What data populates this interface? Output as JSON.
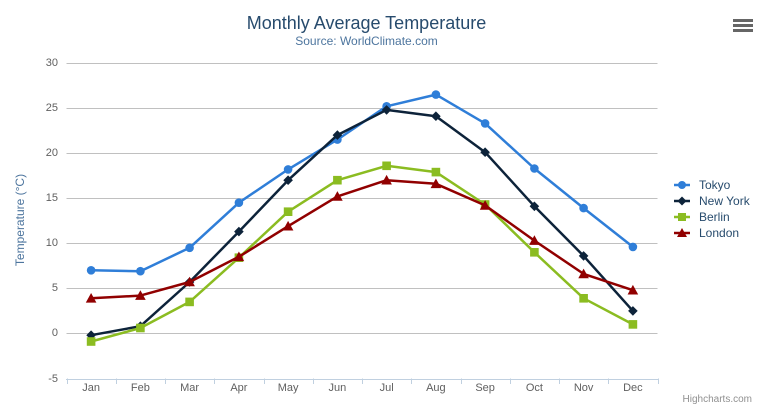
{
  "header": {
    "title": "Monthly Average Temperature",
    "subtitle": "Source: WorldClimate.com"
  },
  "context_menu": {
    "icon": "hamburger-icon"
  },
  "credits": {
    "label": "Highcharts.com"
  },
  "colors": {
    "title": "#274b6d",
    "subtitle": "#4d759e",
    "axis_title": "#4d759e",
    "axis_labels": "#606060",
    "grid": "#C0C0C0",
    "axis_line": "#C0D0E0",
    "legend_text": "#274b6d",
    "credits": "#909090"
  },
  "chart_data": {
    "type": "line",
    "title": "Monthly Average Temperature",
    "subtitle": "Source: WorldClimate.com",
    "xlabel": "",
    "ylabel": "Temperature (°C)",
    "ylim": [
      -5,
      30
    ],
    "yticks": [
      -5,
      0,
      5,
      10,
      15,
      20,
      25,
      30
    ],
    "grid": true,
    "legend_position": "right",
    "categories": [
      "Jan",
      "Feb",
      "Mar",
      "Apr",
      "May",
      "Jun",
      "Jul",
      "Aug",
      "Sep",
      "Oct",
      "Nov",
      "Dec"
    ],
    "series": [
      {
        "name": "Tokyo",
        "color": "#2f7ed8",
        "marker": "circle",
        "values": [
          7.0,
          6.9,
          9.5,
          14.5,
          18.2,
          21.5,
          25.2,
          26.5,
          23.3,
          18.3,
          13.9,
          9.6
        ]
      },
      {
        "name": "New York",
        "color": "#0d233a",
        "marker": "diamond",
        "values": [
          -0.2,
          0.8,
          5.7,
          11.3,
          17.0,
          22.0,
          24.8,
          24.1,
          20.1,
          14.1,
          8.6,
          2.5
        ]
      },
      {
        "name": "Berlin",
        "color": "#8bbc21",
        "marker": "square",
        "values": [
          -0.9,
          0.6,
          3.5,
          8.4,
          13.5,
          17.0,
          18.6,
          17.9,
          14.3,
          9.0,
          3.9,
          1.0
        ]
      },
      {
        "name": "London",
        "color": "#910000",
        "marker": "triangle",
        "values": [
          3.9,
          4.2,
          5.7,
          8.5,
          11.9,
          15.2,
          17.0,
          16.6,
          14.2,
          10.3,
          6.6,
          4.8
        ]
      }
    ]
  }
}
